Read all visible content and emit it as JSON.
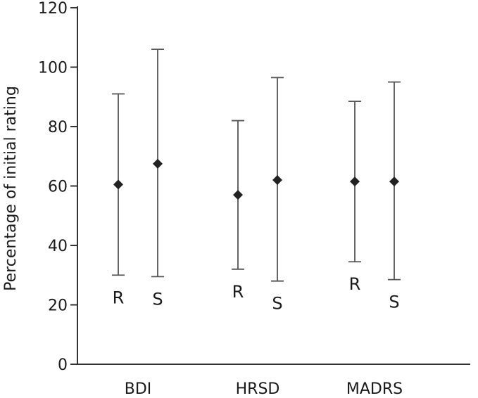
{
  "chart_data": {
    "type": "scatter",
    "ylabel": "Percentage of initial rating",
    "ylim": [
      0,
      120
    ],
    "yticks": [
      0,
      20,
      40,
      60,
      80,
      100,
      120
    ],
    "grid": false,
    "legend": "none",
    "categories": [
      "BDI",
      "HRSD",
      "MADRS"
    ],
    "groups": [
      {
        "category": "BDI",
        "points": [
          {
            "label": "R",
            "mean": 60.5,
            "low": 30,
            "high": 91
          },
          {
            "label": "S",
            "mean": 67.5,
            "low": 29.5,
            "high": 106
          }
        ]
      },
      {
        "category": "HRSD",
        "points": [
          {
            "label": "R",
            "mean": 57,
            "low": 32,
            "high": 82
          },
          {
            "label": "S",
            "mean": 62,
            "low": 28,
            "high": 96.5
          }
        ]
      },
      {
        "category": "MADRS",
        "points": [
          {
            "label": "R",
            "mean": 61.5,
            "low": 34.5,
            "high": 88.5
          },
          {
            "label": "S",
            "mean": 61.5,
            "low": 28.5,
            "high": 95
          }
        ]
      }
    ],
    "colors": {
      "axis": "#333333",
      "errorbar": "#555555",
      "marker": "#222222"
    }
  }
}
